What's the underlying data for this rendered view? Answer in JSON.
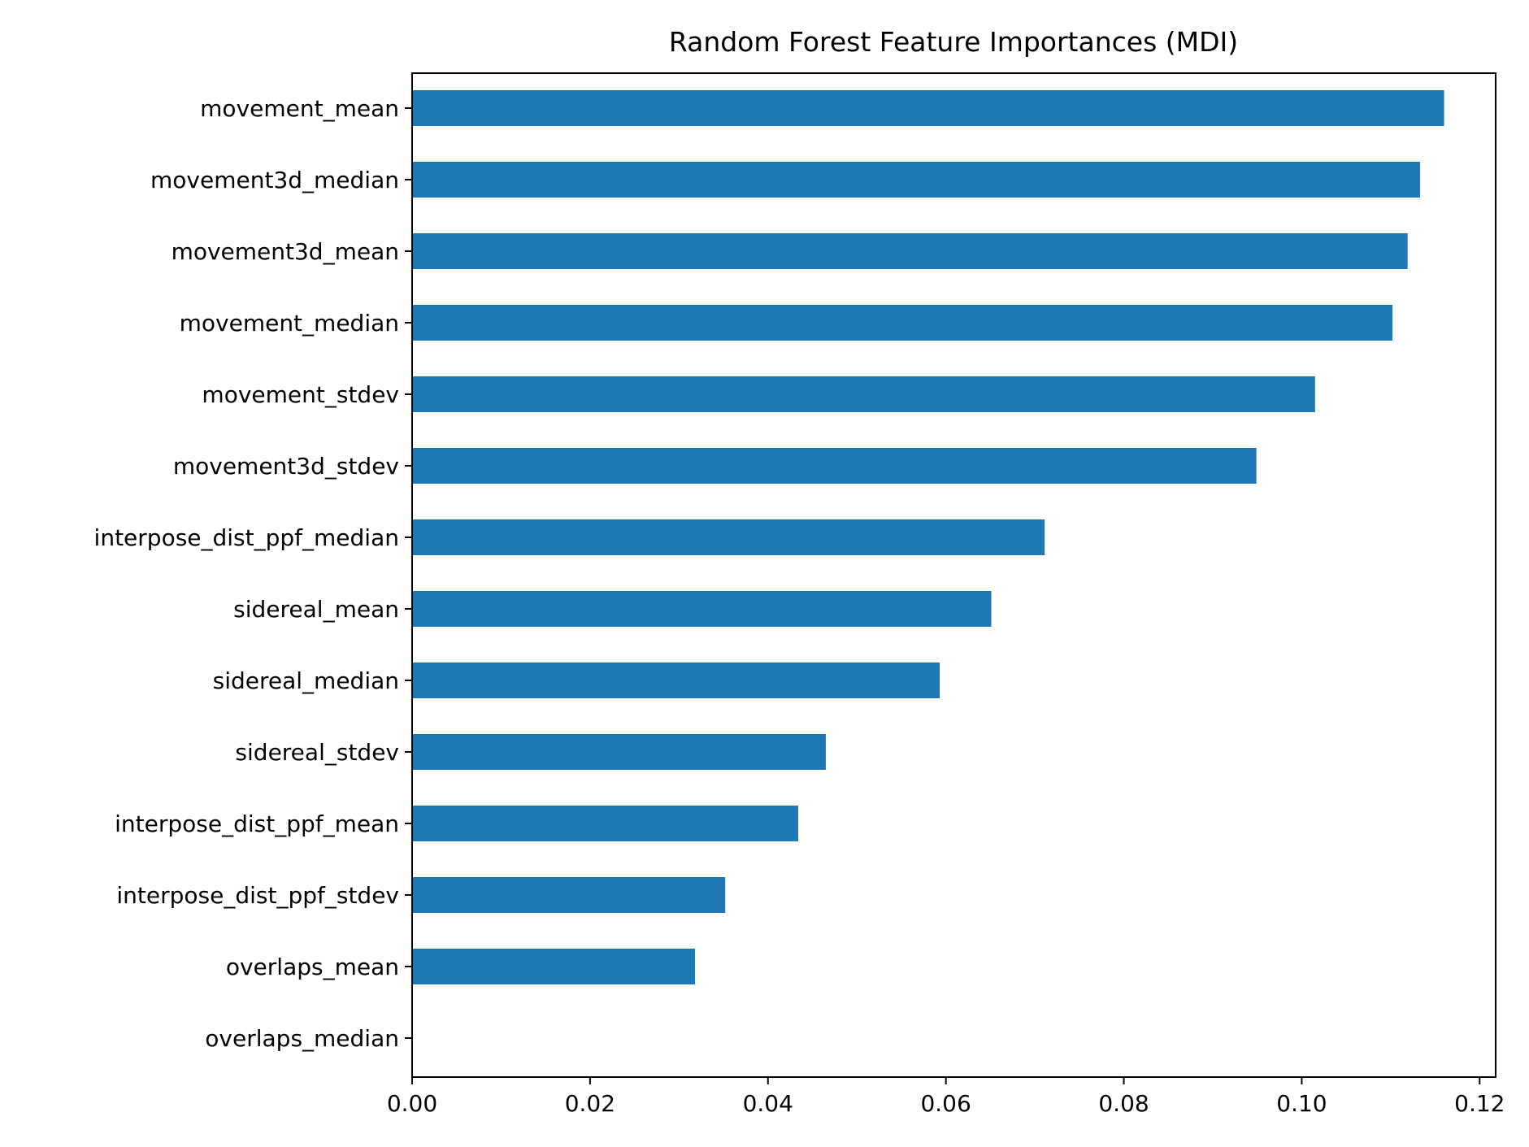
{
  "chart_data": {
    "type": "bar",
    "orientation": "horizontal",
    "title": "Random Forest Feature Importances (MDI)",
    "xlabel": "",
    "ylabel": "",
    "categories": [
      "movement_mean",
      "movement3d_median",
      "movement3d_mean",
      "movement_median",
      "movement_stdev",
      "movement3d_stdev",
      "interpose_dist_ppf_median",
      "sidereal_mean",
      "sidereal_median",
      "sidereal_stdev",
      "interpose_dist_ppf_mean",
      "interpose_dist_ppf_stdev",
      "overlaps_mean",
      "overlaps_median"
    ],
    "values": [
      0.116,
      0.1133,
      0.1119,
      0.1102,
      0.1015,
      0.0949,
      0.0711,
      0.0651,
      0.0593,
      0.0465,
      0.0434,
      0.0352,
      0.0318,
      0.0
    ],
    "xlim": [
      0.0,
      0.1218
    ],
    "xticks": [
      0.0,
      0.02,
      0.04,
      0.06,
      0.08,
      0.1,
      0.12
    ],
    "xtick_labels": [
      "0.00",
      "0.02",
      "0.04",
      "0.06",
      "0.08",
      "0.10",
      "0.12"
    ],
    "bar_color": "#1f77b4",
    "grid": false,
    "legend": "none"
  }
}
